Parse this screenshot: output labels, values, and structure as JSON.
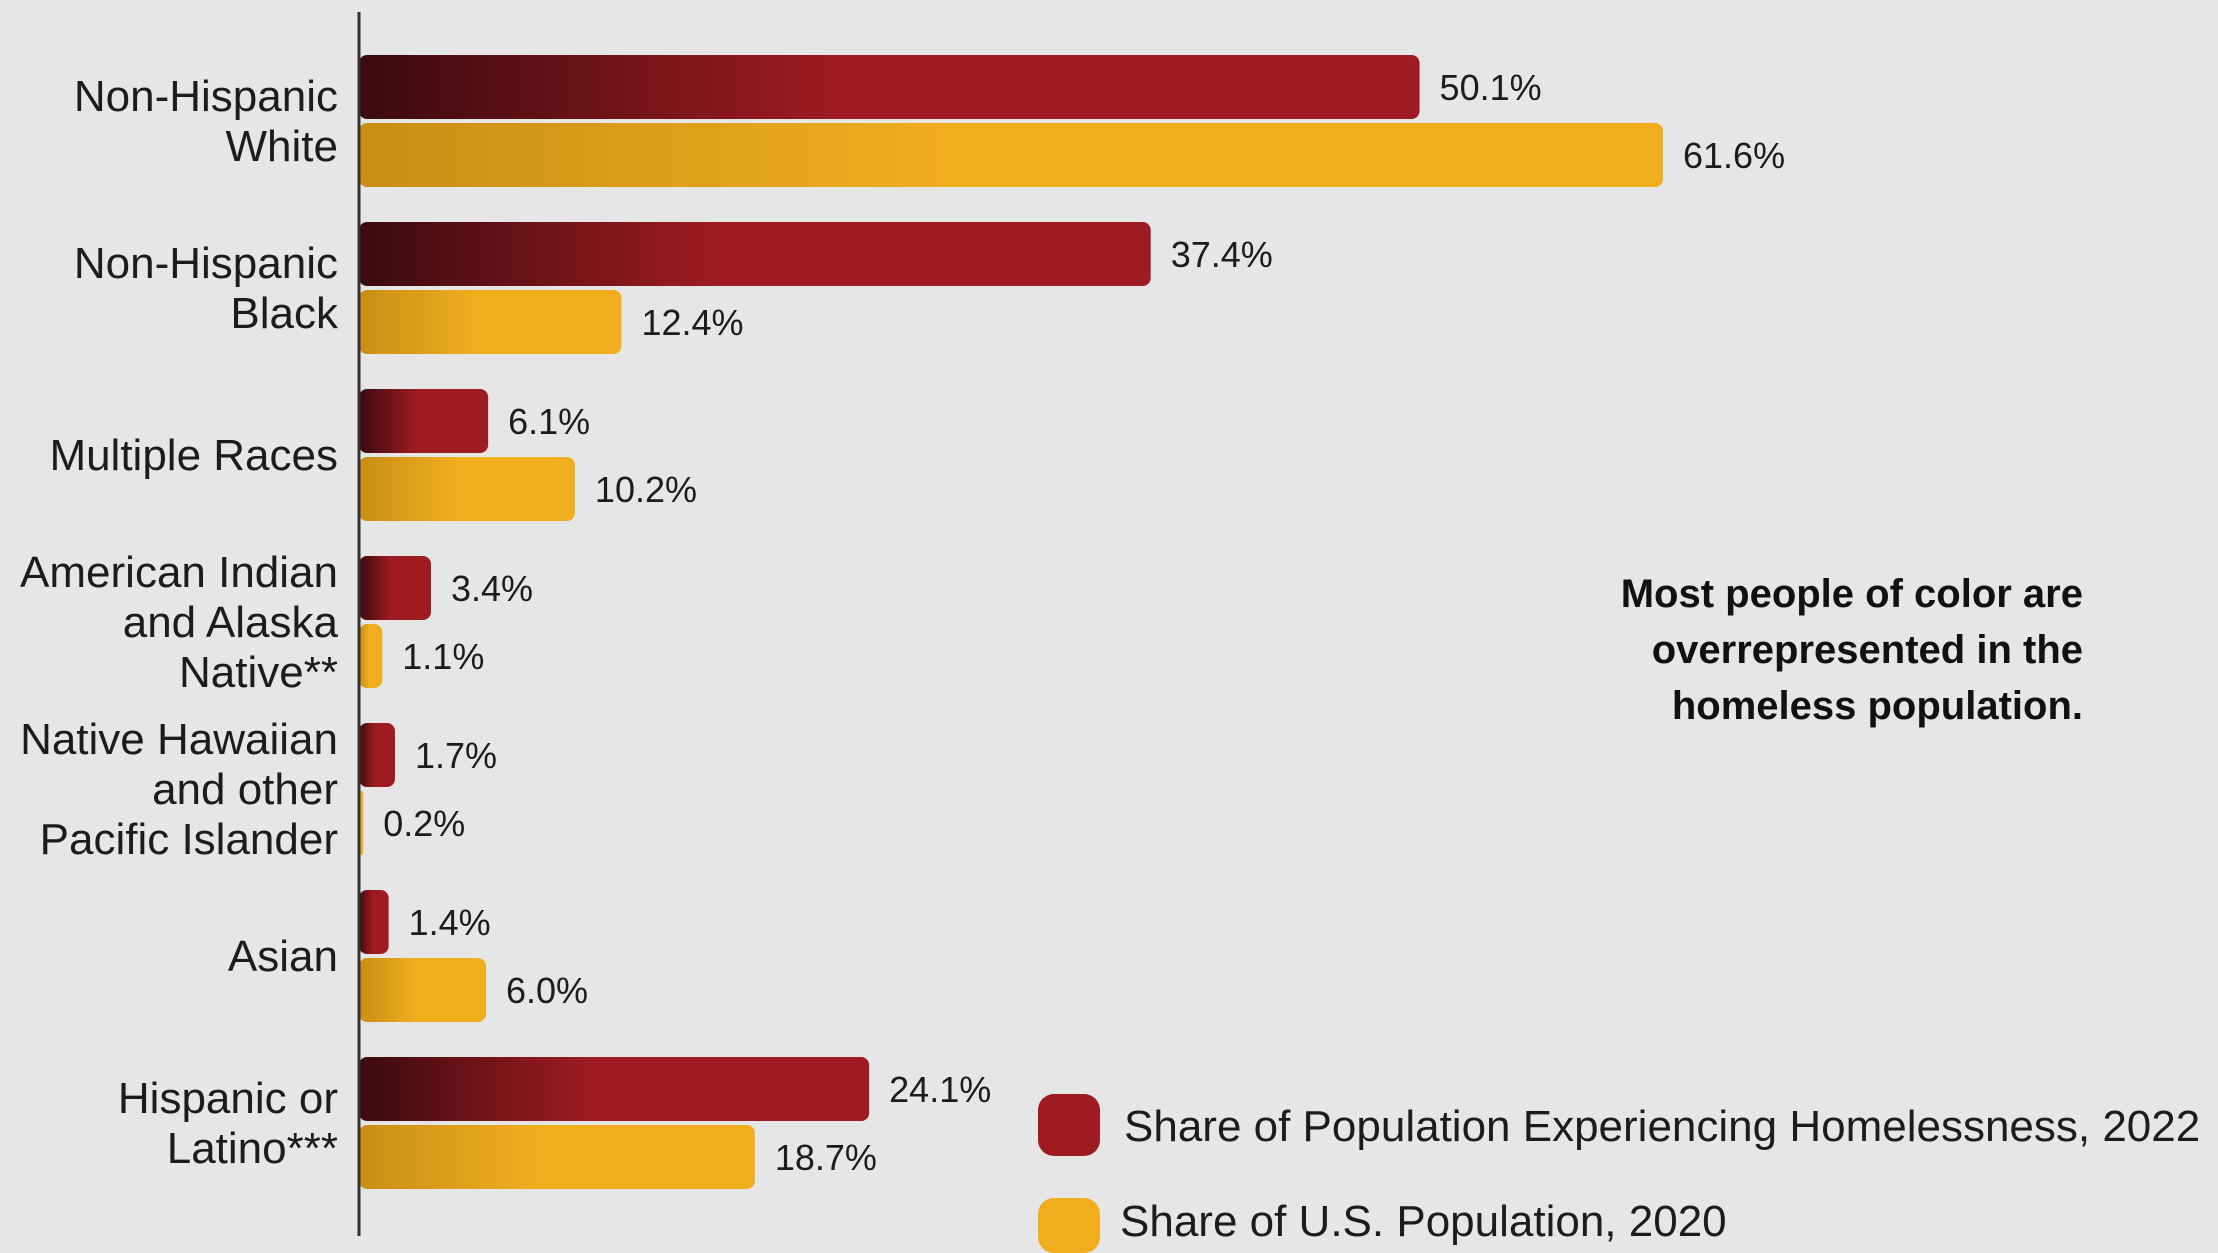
{
  "chart_data": {
    "type": "bar",
    "orientation": "horizontal",
    "categories": [
      [
        "Non-Hispanic",
        "White"
      ],
      [
        "Non-Hispanic",
        "Black"
      ],
      [
        "Multiple Races"
      ],
      [
        "American Indian",
        "and Alaska",
        "Native**"
      ],
      [
        "Native Hawaiian",
        "and other",
        "Pacific Islander"
      ],
      [
        "Asian"
      ],
      [
        "Hispanic or",
        "Latino***"
      ]
    ],
    "series": [
      {
        "name": "Share of Population Experiencing Homelessness, 2022",
        "values": [
          50.1,
          37.4,
          6.1,
          3.4,
          1.7,
          1.4,
          24.1
        ],
        "labels": [
          "50.1%",
          "37.4%",
          "6.1%",
          "3.4%",
          "1.7%",
          "1.4%",
          "24.1%"
        ],
        "color": "#9e1b22",
        "gradient_start": "#3a0b0d"
      },
      {
        "name": "Share of U.S. Population, 2020",
        "values": [
          61.6,
          12.4,
          10.2,
          1.1,
          0.2,
          6.0,
          18.7
        ],
        "labels": [
          "61.6%",
          "12.4%",
          "10.2%",
          "1.1%",
          "0.2%",
          "6.0%",
          "18.7%"
        ],
        "color": "#f0ad1e",
        "gradient_start": "#c88e15"
      }
    ],
    "annotation": [
      "Most people of color are",
      "overrepresented in the",
      "homeless population."
    ],
    "xlim": [
      0,
      61.6
    ],
    "legend_position": "bottom-right",
    "grid": false
  }
}
